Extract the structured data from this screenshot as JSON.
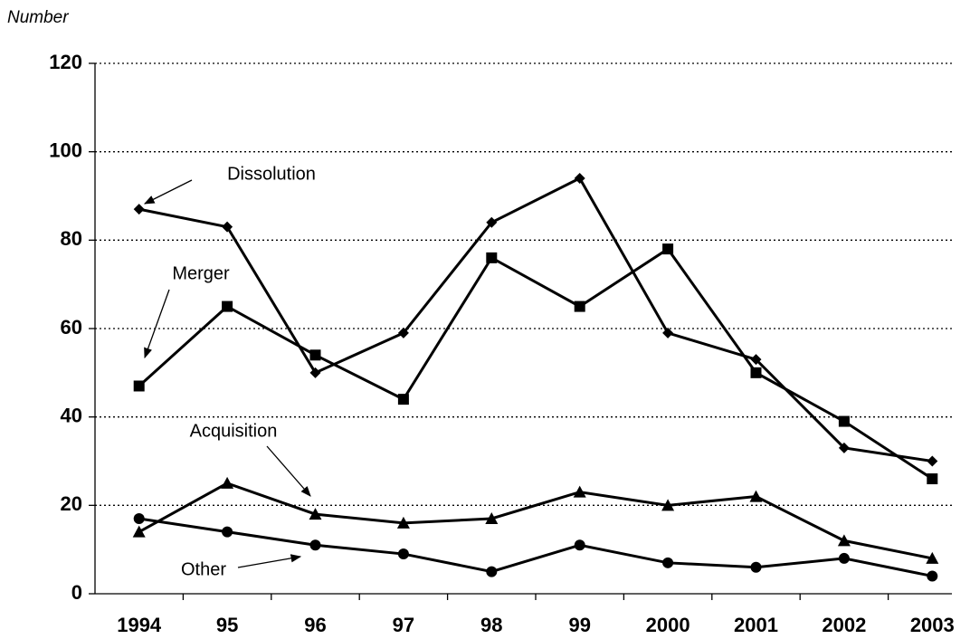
{
  "chart_data": {
    "type": "line",
    "y_label": "Number",
    "categories": [
      "1994",
      "95",
      "96",
      "97",
      "98",
      "99",
      "2000",
      "2001",
      "2002",
      "2003"
    ],
    "series": [
      {
        "name": "Dissolution",
        "color": "#000000",
        "marker": "diamond",
        "values": [
          87,
          83,
          50,
          59,
          84,
          94,
          59,
          53,
          33,
          30
        ]
      },
      {
        "name": "Merger",
        "color": "#000000",
        "marker": "square",
        "values": [
          47,
          65,
          54,
          44,
          76,
          65,
          78,
          50,
          39,
          26
        ]
      },
      {
        "name": "Acquisition",
        "color": "#000000",
        "marker": "triangle",
        "values": [
          14,
          25,
          18,
          16,
          17,
          23,
          20,
          22,
          12,
          8
        ]
      },
      {
        "name": "Other",
        "color": "#000000",
        "marker": "circle",
        "values": [
          17,
          14,
          11,
          9,
          5,
          11,
          7,
          6,
          8,
          4
        ]
      }
    ],
    "ylim": [
      0,
      120
    ],
    "yticks": [
      0,
      20,
      40,
      60,
      80,
      100,
      120
    ],
    "grid": true
  }
}
